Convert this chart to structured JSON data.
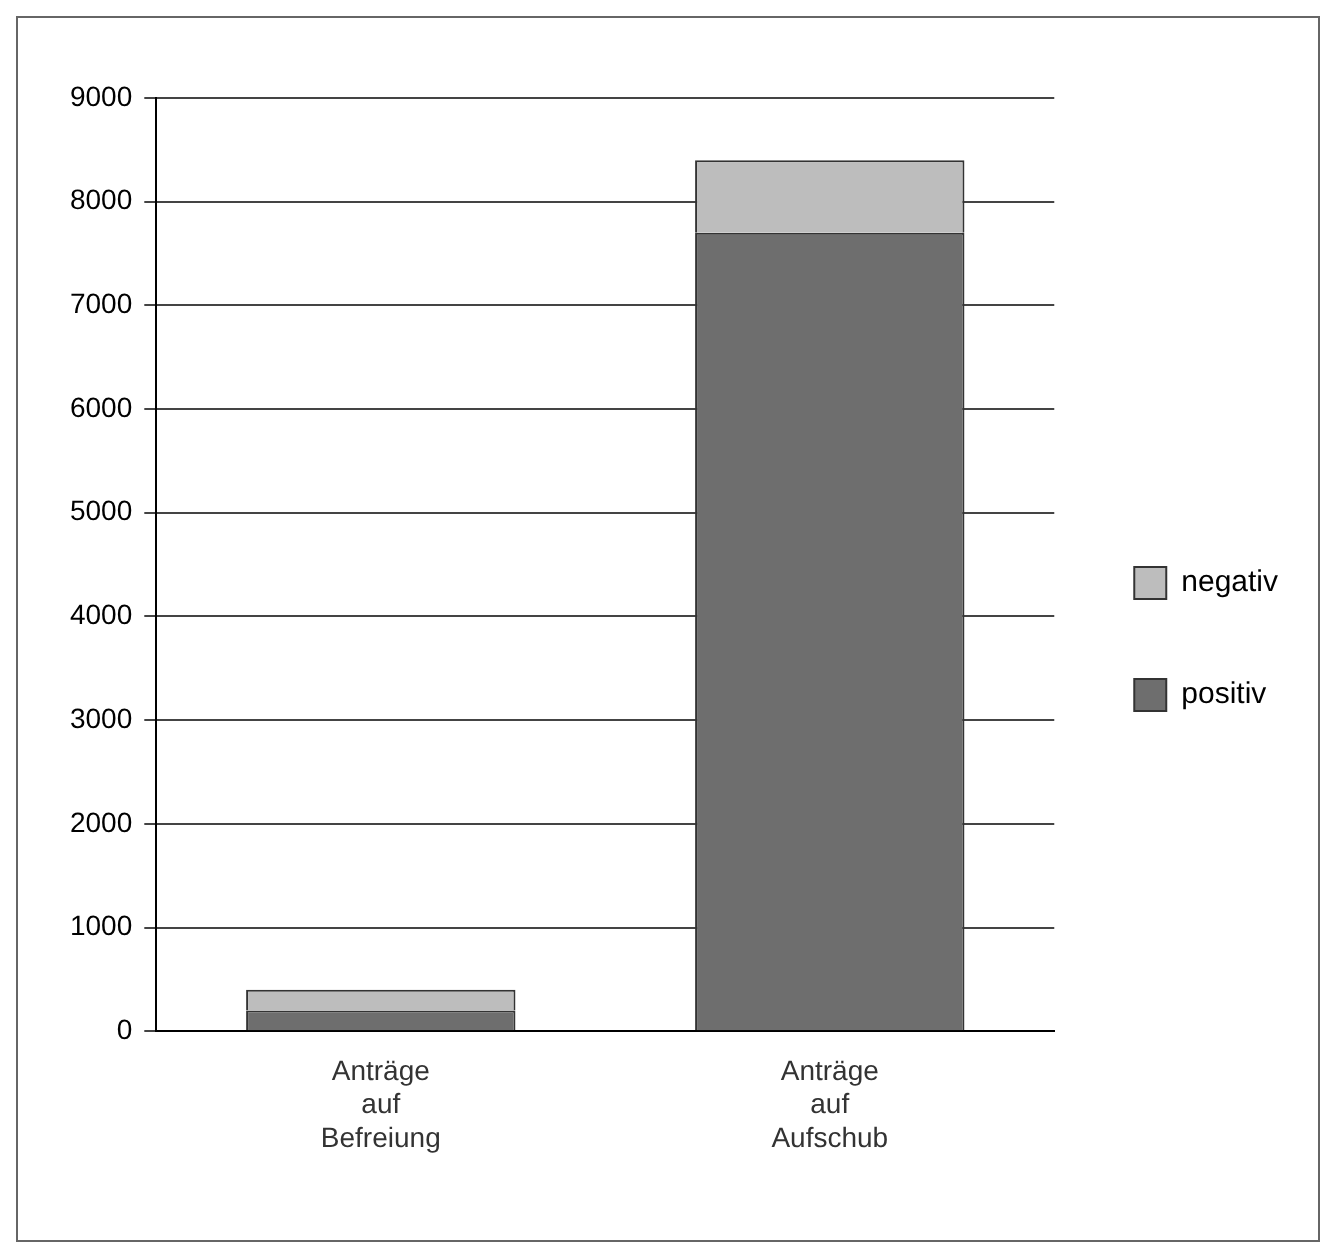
{
  "chart_data": {
    "type": "bar",
    "stacked": true,
    "categories": [
      "Anträge auf Befreiung",
      "Anträge auf Aufschub"
    ],
    "series": [
      {
        "name": "positiv",
        "color": "#6e6e6e",
        "values": [
          200,
          7700
        ]
      },
      {
        "name": "negativ",
        "color": "#bdbdbd",
        "values": [
          200,
          700
        ]
      }
    ],
    "ylim": [
      0,
      9000
    ],
    "yticks": [
      0,
      1000,
      2000,
      3000,
      4000,
      5000,
      6000,
      7000,
      8000,
      9000
    ],
    "grid": "y",
    "legend": "right"
  }
}
